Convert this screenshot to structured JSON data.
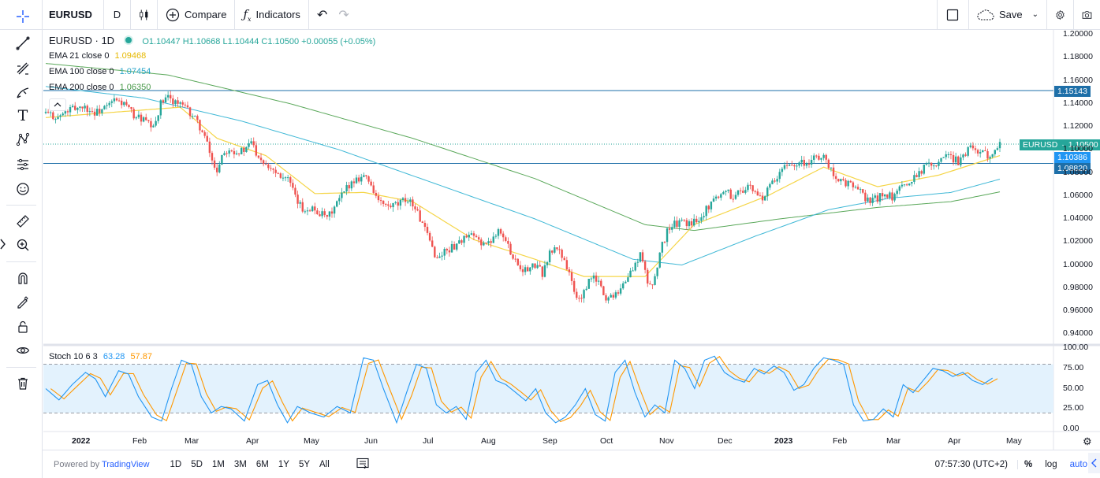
{
  "toolbar": {
    "symbol": "EURUSD",
    "interval": "D",
    "compare": "Compare",
    "indicators": "Indicators",
    "save": "Save"
  },
  "legend": {
    "title": "EURUSD · 1D",
    "ohlc": "O1.10447 H1.10668 L1.10444 C1.10500 +0.00055 (+0.05%)",
    "ema21_label": "EMA 21 close 0",
    "ema21_value": "1.09468",
    "ema100_label": "EMA 100 close 0",
    "ema100_value": "1.07454",
    "ema200_label": "EMA 200 close 0",
    "ema200_value": "1.06350",
    "stoch_label": "Stoch 10 6 3",
    "stoch_k": "63.28",
    "stoch_d": "57.87"
  },
  "colors": {
    "up": "#26a69a",
    "down": "#ef5350",
    "ema21": "#f5d547",
    "ema100": "#3fb8d6",
    "ema200": "#5aa85a",
    "hline": "#1e6fa8",
    "stoch_k": "#2196f3",
    "stoch_d": "#ff9800",
    "stoch_band": "#e3f2fd"
  },
  "price_axis": [
    "1.20000",
    "1.18000",
    "1.16000",
    "1.14000",
    "1.12000",
    "1.10000",
    "1.08000",
    "1.06000",
    "1.04000",
    "1.02000",
    "1.00000",
    "0.98000",
    "0.96000",
    "0.94000"
  ],
  "price_tags": {
    "hline_top": "1.15143",
    "current_label": "EURUSD",
    "current": "1.10500",
    "tag2": "1.10386",
    "hline_bottom": "1.08820"
  },
  "stoch_axis": [
    "100.00",
    "75.00",
    "50.00",
    "25.00",
    "0.00"
  ],
  "time_axis": [
    "2022",
    "Feb",
    "Mar",
    "Apr",
    "May",
    "Jun",
    "Jul",
    "Aug",
    "Sep",
    "Oct",
    "Nov",
    "Dec",
    "2023",
    "Feb",
    "Mar",
    "Apr",
    "May"
  ],
  "bottom": {
    "powered": "Powered by",
    "brand": "TradingView",
    "ranges": [
      "1D",
      "5D",
      "1M",
      "3M",
      "6M",
      "1Y",
      "5Y",
      "All"
    ],
    "clock": "07:57:30 (UTC+2)",
    "percent": "%",
    "log": "log",
    "auto": "auto"
  },
  "chart_data": {
    "type": "candlestick",
    "price_range": [
      0.93,
      1.205
    ],
    "hlines": [
      1.15143,
      1.0882
    ],
    "current_price": 1.105,
    "close_path": [
      [
        0,
        1.132
      ],
      [
        5,
        1.128
      ],
      [
        10,
        1.135
      ],
      [
        15,
        1.138
      ],
      [
        20,
        1.132
      ],
      [
        25,
        1.137
      ],
      [
        28,
        1.143
      ],
      [
        32,
        1.14
      ],
      [
        36,
        1.13
      ],
      [
        40,
        1.126
      ],
      [
        44,
        1.118
      ],
      [
        47,
        1.14
      ],
      [
        50,
        1.145
      ],
      [
        53,
        1.142
      ],
      [
        56,
        1.138
      ],
      [
        60,
        1.13
      ],
      [
        63,
        1.12
      ],
      [
        66,
        1.105
      ],
      [
        68,
        1.09
      ],
      [
        70,
        1.082
      ],
      [
        72,
        1.096
      ],
      [
        75,
        1.102
      ],
      [
        78,
        1.098
      ],
      [
        82,
        1.1
      ],
      [
        84,
        1.108
      ],
      [
        86,
        1.098
      ],
      [
        89,
        1.09
      ],
      [
        92,
        1.085
      ],
      [
        95,
        1.08
      ],
      [
        99,
        1.075
      ],
      [
        102,
        1.058
      ],
      [
        105,
        1.048
      ],
      [
        108,
        1.05
      ],
      [
        112,
        1.045
      ],
      [
        115,
        1.04
      ],
      [
        118,
        1.05
      ],
      [
        121,
        1.06
      ],
      [
        124,
        1.07
      ],
      [
        127,
        1.075
      ],
      [
        130,
        1.078
      ],
      [
        133,
        1.07
      ],
      [
        136,
        1.055
      ],
      [
        140,
        1.05
      ],
      [
        144,
        1.052
      ],
      [
        148,
        1.058
      ],
      [
        151,
        1.05
      ],
      [
        154,
        1.035
      ],
      [
        157,
        1.02
      ],
      [
        160,
        1.005
      ],
      [
        163,
        1.012
      ],
      [
        166,
        1.015
      ],
      [
        170,
        1.022
      ],
      [
        174,
        1.025
      ],
      [
        178,
        1.02
      ],
      [
        181,
        1.018
      ],
      [
        185,
        1.032
      ],
      [
        188,
        1.02
      ],
      [
        191,
        1.008
      ],
      [
        194,
        0.998
      ],
      [
        197,
        0.995
      ],
      [
        200,
        1.0
      ],
      [
        203,
        0.993
      ],
      [
        206,
        1.01
      ],
      [
        209,
        1.015
      ],
      [
        212,
        1.005
      ],
      [
        215,
        0.985
      ],
      [
        217,
        0.97
      ],
      [
        220,
        0.975
      ],
      [
        223,
        0.99
      ],
      [
        226,
        0.985
      ],
      [
        229,
        0.97
      ],
      [
        232,
        0.975
      ],
      [
        235,
        0.98
      ],
      [
        238,
        0.99
      ],
      [
        241,
        1.0
      ],
      [
        243,
        1.01
      ],
      [
        246,
        0.985
      ],
      [
        248,
        0.982
      ],
      [
        251,
        1.01
      ],
      [
        254,
        1.03
      ],
      [
        257,
        1.035
      ],
      [
        260,
        1.038
      ],
      [
        263,
        1.035
      ],
      [
        266,
        1.04
      ],
      [
        269,
        1.045
      ],
      [
        272,
        1.055
      ],
      [
        275,
        1.06
      ],
      [
        278,
        1.066
      ],
      [
        281,
        1.058
      ],
      [
        284,
        1.065
      ],
      [
        287,
        1.068
      ],
      [
        290,
        1.062
      ],
      [
        293,
        1.058
      ],
      [
        296,
        1.068
      ],
      [
        299,
        1.075
      ],
      [
        302,
        1.085
      ],
      [
        305,
        1.088
      ],
      [
        308,
        1.09
      ],
      [
        311,
        1.088
      ],
      [
        314,
        1.092
      ],
      [
        317,
        1.095
      ],
      [
        319,
        1.09
      ],
      [
        322,
        1.08
      ],
      [
        325,
        1.072
      ],
      [
        328,
        1.07
      ],
      [
        331,
        1.068
      ],
      [
        334,
        1.06
      ],
      [
        337,
        1.055
      ],
      [
        340,
        1.058
      ],
      [
        343,
        1.063
      ],
      [
        346,
        1.058
      ],
      [
        349,
        1.065
      ],
      [
        352,
        1.07
      ],
      [
        355,
        1.078
      ],
      [
        358,
        1.082
      ],
      [
        361,
        1.09
      ],
      [
        364,
        1.088
      ],
      [
        367,
        1.095
      ],
      [
        370,
        1.093
      ],
      [
        373,
        1.09
      ],
      [
        376,
        1.098
      ],
      [
        379,
        1.104
      ],
      [
        382,
        1.097
      ],
      [
        385,
        1.095
      ],
      [
        388,
        1.102
      ],
      [
        390,
        1.105
      ]
    ],
    "ema21_path": [
      [
        0,
        1.128
      ],
      [
        30,
        1.133
      ],
      [
        55,
        1.137
      ],
      [
        70,
        1.11
      ],
      [
        90,
        1.095
      ],
      [
        110,
        1.062
      ],
      [
        130,
        1.063
      ],
      [
        150,
        1.055
      ],
      [
        175,
        1.022
      ],
      [
        200,
        1.005
      ],
      [
        220,
        0.99
      ],
      [
        245,
        0.99
      ],
      [
        265,
        1.035
      ],
      [
        295,
        1.06
      ],
      [
        318,
        1.085
      ],
      [
        340,
        1.068
      ],
      [
        365,
        1.078
      ],
      [
        390,
        1.095
      ]
    ],
    "ema100_path": [
      [
        0,
        1.155
      ],
      [
        40,
        1.145
      ],
      [
        80,
        1.125
      ],
      [
        120,
        1.1
      ],
      [
        160,
        1.07
      ],
      [
        200,
        1.04
      ],
      [
        240,
        1.005
      ],
      [
        260,
        1.0
      ],
      [
        290,
        1.025
      ],
      [
        320,
        1.048
      ],
      [
        345,
        1.058
      ],
      [
        370,
        1.063
      ],
      [
        390,
        1.0745
      ]
    ],
    "ema200_path": [
      [
        0,
        1.175
      ],
      [
        50,
        1.165
      ],
      [
        100,
        1.14
      ],
      [
        150,
        1.11
      ],
      [
        200,
        1.075
      ],
      [
        245,
        1.035
      ],
      [
        265,
        1.03
      ],
      [
        300,
        1.04
      ],
      [
        340,
        1.05
      ],
      [
        370,
        1.055
      ],
      [
        390,
        1.0635
      ]
    ],
    "stoch_k": [
      [
        0,
        50
      ],
      [
        4,
        36
      ],
      [
        8,
        55
      ],
      [
        12,
        70
      ],
      [
        15,
        62
      ],
      [
        18,
        40
      ],
      [
        22,
        72
      ],
      [
        25,
        68
      ],
      [
        28,
        40
      ],
      [
        32,
        15
      ],
      [
        35,
        10
      ],
      [
        38,
        50
      ],
      [
        41,
        85
      ],
      [
        44,
        80
      ],
      [
        47,
        40
      ],
      [
        50,
        20
      ],
      [
        53,
        28
      ],
      [
        56,
        25
      ],
      [
        60,
        10
      ],
      [
        64,
        55
      ],
      [
        67,
        60
      ],
      [
        70,
        30
      ],
      [
        73,
        8
      ],
      [
        76,
        28
      ],
      [
        80,
        20
      ],
      [
        84,
        15
      ],
      [
        88,
        28
      ],
      [
        92,
        20
      ],
      [
        96,
        88
      ],
      [
        99,
        85
      ],
      [
        102,
        50
      ],
      [
        106,
        8
      ],
      [
        109,
        45
      ],
      [
        112,
        80
      ],
      [
        115,
        75
      ],
      [
        118,
        30
      ],
      [
        121,
        20
      ],
      [
        124,
        28
      ],
      [
        127,
        12
      ],
      [
        130,
        70
      ],
      [
        133,
        85
      ],
      [
        136,
        60
      ],
      [
        139,
        55
      ],
      [
        142,
        45
      ],
      [
        145,
        35
      ],
      [
        148,
        50
      ],
      [
        151,
        20
      ],
      [
        154,
        8
      ],
      [
        157,
        15
      ],
      [
        160,
        30
      ],
      [
        163,
        50
      ],
      [
        166,
        18
      ],
      [
        169,
        10
      ],
      [
        172,
        70
      ],
      [
        175,
        85
      ],
      [
        178,
        45
      ],
      [
        181,
        15
      ],
      [
        184,
        30
      ],
      [
        187,
        20
      ],
      [
        190,
        85
      ],
      [
        193,
        75
      ],
      [
        196,
        50
      ],
      [
        199,
        85
      ],
      [
        202,
        90
      ],
      [
        205,
        70
      ],
      [
        208,
        62
      ],
      [
        211,
        58
      ],
      [
        214,
        75
      ],
      [
        217,
        68
      ],
      [
        220,
        78
      ],
      [
        223,
        70
      ],
      [
        226,
        48
      ],
      [
        229,
        55
      ],
      [
        232,
        75
      ],
      [
        235,
        88
      ],
      [
        238,
        85
      ],
      [
        241,
        80
      ],
      [
        244,
        30
      ],
      [
        247,
        10
      ],
      [
        250,
        12
      ],
      [
        253,
        25
      ],
      [
        256,
        15
      ],
      [
        259,
        55
      ],
      [
        262,
        45
      ],
      [
        265,
        60
      ],
      [
        268,
        75
      ],
      [
        271,
        72
      ],
      [
        274,
        65
      ],
      [
        277,
        70
      ],
      [
        280,
        60
      ],
      [
        283,
        55
      ],
      [
        286,
        63
      ]
    ]
  }
}
